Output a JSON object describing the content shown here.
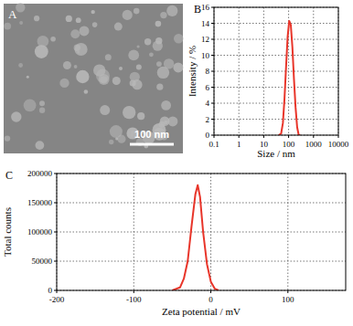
{
  "image": {
    "label": "A",
    "scale_bar": "100 nm"
  },
  "chart_data": [
    {
      "type": "line",
      "title": "B",
      "x_label": "Size / nm",
      "y_label": "Intensity / %",
      "log": "x",
      "grid": true,
      "xlim": [
        0.1,
        10000
      ],
      "xticks": [
        0.1,
        1,
        10,
        100,
        1000,
        10000
      ],
      "ylim": [
        0,
        16
      ],
      "yticks": [
        0,
        2,
        4,
        6,
        8,
        10,
        12,
        14,
        16
      ],
      "series": [
        {
          "name": "Intensity",
          "color": "#e8352a",
          "x": [
            40,
            50,
            58.8,
            68.1,
            78.8,
            91.3,
            105.7,
            122.4,
            141.8,
            164.2,
            190.1,
            220.2,
            255,
            295.3
          ],
          "values": [
            0,
            0.2,
            1.5,
            4.5,
            8.5,
            12.3,
            14.3,
            13.8,
            11,
            7,
            3.5,
            1,
            0,
            0
          ]
        }
      ]
    },
    {
      "type": "line",
      "title": "C",
      "x_label": "Zeta potential / mV",
      "y_label": "Total counts",
      "grid": true,
      "xlim": [
        -200,
        175
      ],
      "xticks": [
        -200,
        -100,
        0,
        100
      ],
      "ylim": [
        0,
        200000
      ],
      "yticks": [
        0,
        50000,
        100000,
        150000,
        200000
      ],
      "series": [
        {
          "name": "Total counts",
          "color": "#e8352a",
          "x": [
            -50,
            -40,
            -35,
            -30,
            -25,
            -20,
            -17,
            -14,
            -10,
            -5,
            0,
            5,
            10
          ],
          "values": [
            0,
            5000,
            20000,
            50000,
            110000,
            165000,
            180000,
            160000,
            100000,
            45000,
            15000,
            3000,
            0
          ]
        }
      ]
    }
  ]
}
